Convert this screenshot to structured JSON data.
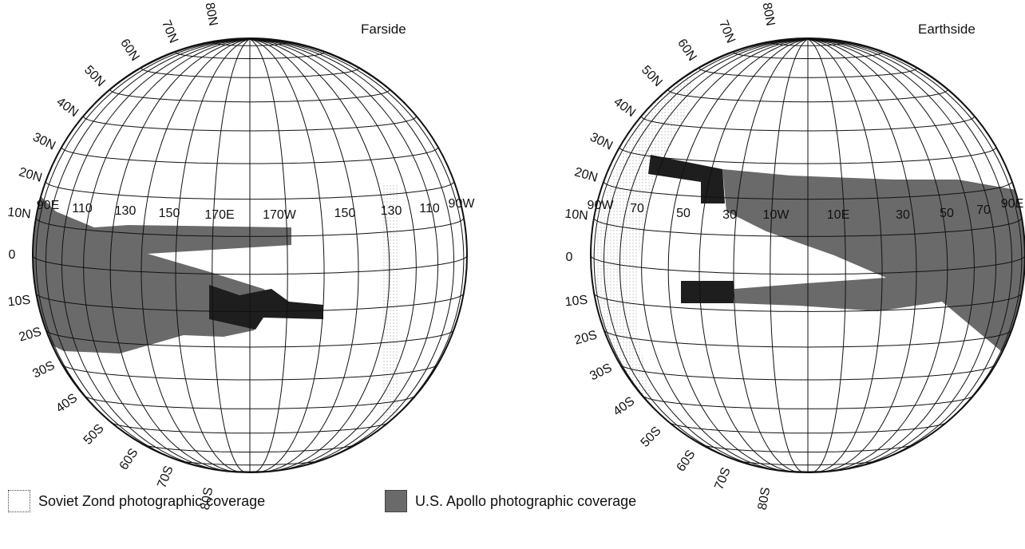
{
  "farside": {
    "title": "Farside",
    "lat_labels": [
      "80N",
      "70N",
      "60N",
      "50N",
      "40N",
      "30N",
      "20N",
      "10N",
      "0",
      "10S",
      "20S",
      "30S",
      "40S",
      "50S",
      "60S",
      "70S",
      "80S"
    ],
    "lon_labels": [
      "90E",
      "110",
      "130",
      "150",
      "170E",
      "170W",
      "150",
      "130",
      "110",
      "90W"
    ]
  },
  "earthside": {
    "title": "Earthside",
    "lat_labels": [
      "80N",
      "70N",
      "60N",
      "50N",
      "40N",
      "30N",
      "20N",
      "10N",
      "0",
      "10S",
      "20S",
      "30S",
      "40S",
      "50S",
      "60S",
      "70S",
      "80S"
    ],
    "lon_labels": [
      "90W",
      "70",
      "50",
      "30",
      "10W",
      "10E",
      "30",
      "50",
      "70",
      "90E"
    ]
  },
  "legend": {
    "zond": "Soviet Zond photographic coverage",
    "apollo": "U.S. Apollo photographic coverage"
  },
  "colors": {
    "apollo": "#6a6a6a",
    "apollo_dark": "#1e1e1e",
    "zond_dots": "#bdbdbd",
    "grid": "#111111"
  }
}
